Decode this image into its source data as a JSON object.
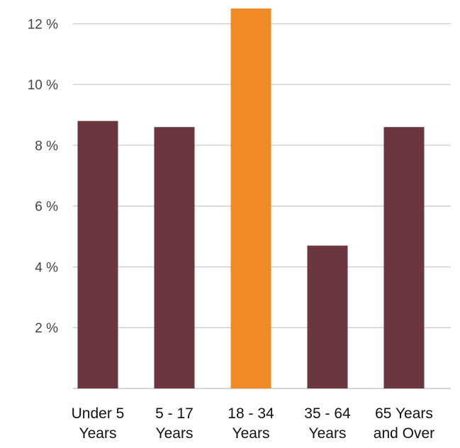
{
  "chart_data": {
    "type": "bar",
    "categories": [
      [
        "Under 5",
        "Years"
      ],
      [
        "5 - 17",
        "Years"
      ],
      [
        "18 - 34",
        "Years"
      ],
      [
        "35 - 64",
        "Years"
      ],
      [
        "65 Years",
        "and Over"
      ]
    ],
    "values": [
      8.8,
      8.6,
      12.5,
      4.7,
      8.6
    ],
    "highlight_index": 2,
    "colors": {
      "default": "#6b363d",
      "highlight": "#f08a24",
      "grid": "#c8c8c8"
    },
    "ylim": [
      0,
      12.5
    ],
    "yticks": [
      {
        "value": 2,
        "label": "2 %"
      },
      {
        "value": 4,
        "label": "4 %"
      },
      {
        "value": 6,
        "label": "6 %"
      },
      {
        "value": 8,
        "label": "8 %"
      },
      {
        "value": 10,
        "label": "10 %"
      },
      {
        "value": 12,
        "label": "12 %"
      }
    ],
    "grid": true,
    "title": "",
    "xlabel": "",
    "ylabel": ""
  }
}
